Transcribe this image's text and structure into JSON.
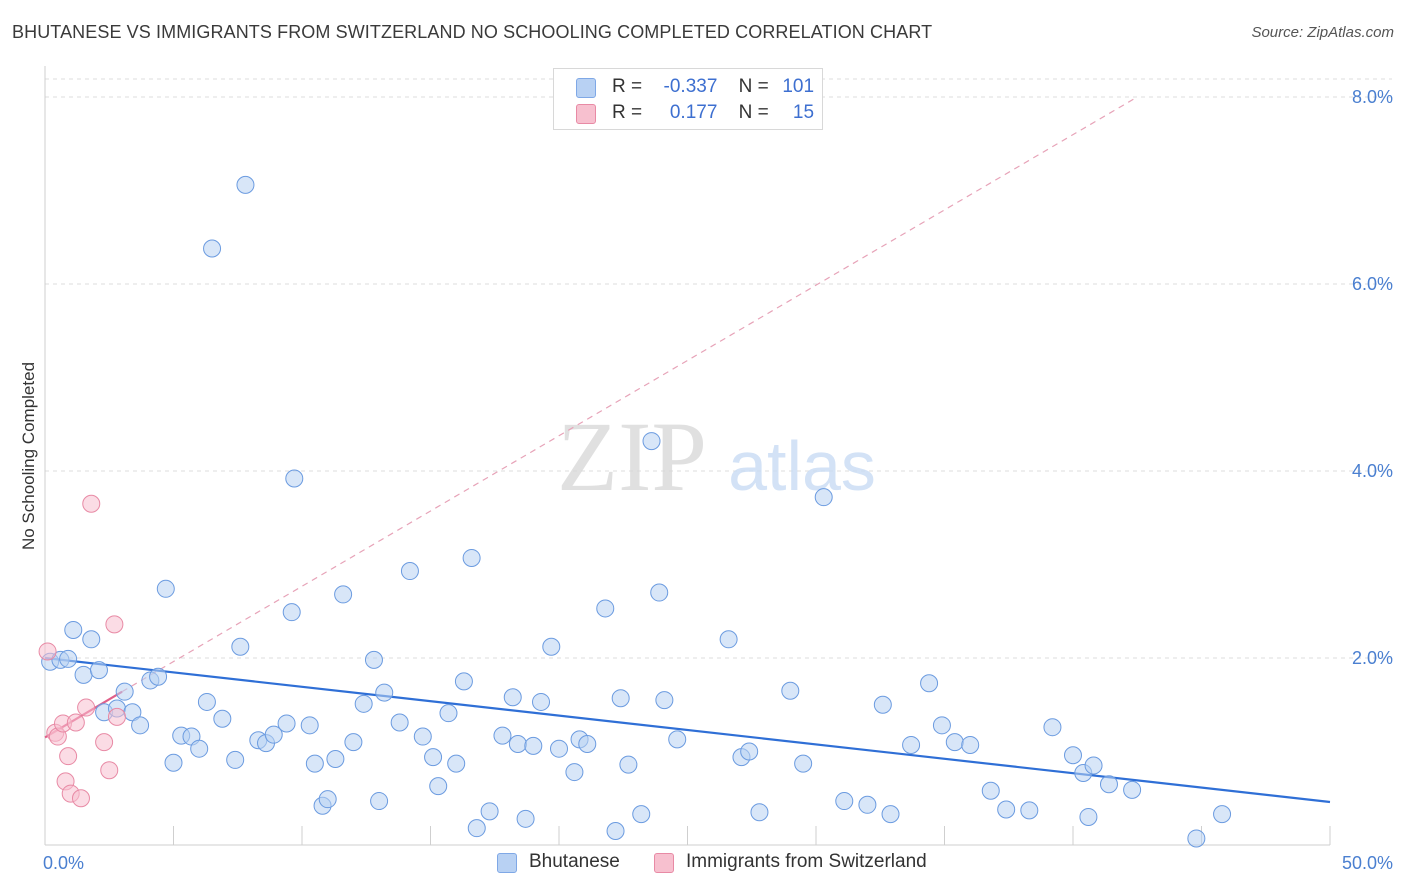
{
  "header": {
    "title": "BHUTANESE VS IMMIGRANTS FROM SWITZERLAND NO SCHOOLING COMPLETED CORRELATION CHART",
    "source": "Source: ZipAtlas.com"
  },
  "watermark": {
    "zip": "ZIP",
    "atlas": "atlas"
  },
  "stats_legend": {
    "rows": [
      {
        "r_label": "R =",
        "r_value": "-0.337",
        "n_label": "N =",
        "n_value": "101",
        "color": "#b8d1f3"
      },
      {
        "r_label": "R =",
        "r_value": "0.177",
        "n_label": "N =",
        "n_value": "15",
        "color": "#f7c0cf"
      }
    ]
  },
  "series_legend": {
    "items": [
      {
        "label": "Bhutanese",
        "color": "#b8d1f3"
      },
      {
        "label": "Immigrants from Switzerland",
        "color": "#f7c0cf"
      }
    ]
  },
  "chart_data": {
    "type": "scatter",
    "title": "BHUTANESE VS IMMIGRANTS FROM SWITZERLAND NO SCHOOLING COMPLETED CORRELATION CHART",
    "xlabel": "",
    "ylabel": "No Schooling Completed",
    "xlim": [
      0,
      50
    ],
    "ylim": [
      0,
      8.2
    ],
    "x_tick_labels": [
      "0.0%",
      "50.0%"
    ],
    "y_ticks": [
      2,
      4,
      6,
      8
    ],
    "y_tick_labels": [
      "2.0%",
      "4.0%",
      "6.0%",
      "8.0%"
    ],
    "grid": true,
    "legend_position": "bottom",
    "colors": {
      "blue_fill": "#b8d1f3",
      "blue_stroke": "#6b9be0",
      "blue_line": "#2f6fd6",
      "pink_fill": "#f7c0cf",
      "pink_stroke": "#e88aa5",
      "pink_line": "#e0608a"
    },
    "series": [
      {
        "name": "Bhutanese",
        "trend": {
          "x": [
            0,
            50
          ],
          "y": [
            2.0,
            0.46
          ]
        },
        "points": [
          [
            0.2,
            1.96
          ],
          [
            0.6,
            1.98
          ],
          [
            0.9,
            1.99
          ],
          [
            1.1,
            2.3
          ],
          [
            1.5,
            1.82
          ],
          [
            1.8,
            2.2
          ],
          [
            2.1,
            1.87
          ],
          [
            2.3,
            1.42
          ],
          [
            2.8,
            1.46
          ],
          [
            3.1,
            1.64
          ],
          [
            3.4,
            1.42
          ],
          [
            3.7,
            1.28
          ],
          [
            4.1,
            1.76
          ],
          [
            4.4,
            1.8
          ],
          [
            4.7,
            2.74
          ],
          [
            5.0,
            0.88
          ],
          [
            5.3,
            1.17
          ],
          [
            5.7,
            1.16
          ],
          [
            6.0,
            1.03
          ],
          [
            6.3,
            1.53
          ],
          [
            6.5,
            6.38
          ],
          [
            6.9,
            1.35
          ],
          [
            7.4,
            0.91
          ],
          [
            7.6,
            2.12
          ],
          [
            7.8,
            7.06
          ],
          [
            8.3,
            1.12
          ],
          [
            8.6,
            1.09
          ],
          [
            8.9,
            1.18
          ],
          [
            9.4,
            1.3
          ],
          [
            9.6,
            2.49
          ],
          [
            9.7,
            3.92
          ],
          [
            10.3,
            1.28
          ],
          [
            10.5,
            0.87
          ],
          [
            10.8,
            0.42
          ],
          [
            11.0,
            0.49
          ],
          [
            11.3,
            0.92
          ],
          [
            11.6,
            2.68
          ],
          [
            12.0,
            1.1
          ],
          [
            12.4,
            1.51
          ],
          [
            12.8,
            1.98
          ],
          [
            13.0,
            0.47
          ],
          [
            13.2,
            1.63
          ],
          [
            13.8,
            1.31
          ],
          [
            14.2,
            2.93
          ],
          [
            14.7,
            1.16
          ],
          [
            15.1,
            0.94
          ],
          [
            15.3,
            0.63
          ],
          [
            15.7,
            1.41
          ],
          [
            16.0,
            0.87
          ],
          [
            16.3,
            1.75
          ],
          [
            16.6,
            3.07
          ],
          [
            16.8,
            0.18
          ],
          [
            17.3,
            0.36
          ],
          [
            17.8,
            1.17
          ],
          [
            18.2,
            1.58
          ],
          [
            18.4,
            1.08
          ],
          [
            18.7,
            0.28
          ],
          [
            19.0,
            1.06
          ],
          [
            19.3,
            1.53
          ],
          [
            19.7,
            2.12
          ],
          [
            20.0,
            1.03
          ],
          [
            20.6,
            0.78
          ],
          [
            20.8,
            1.13
          ],
          [
            21.1,
            1.08
          ],
          [
            21.8,
            2.53
          ],
          [
            22.2,
            0.15
          ],
          [
            22.4,
            1.57
          ],
          [
            22.7,
            0.86
          ],
          [
            23.2,
            0.33
          ],
          [
            23.6,
            4.32
          ],
          [
            23.9,
            2.7
          ],
          [
            24.1,
            1.55
          ],
          [
            24.6,
            1.13
          ],
          [
            26.6,
            2.2
          ],
          [
            27.1,
            0.94
          ],
          [
            27.4,
            1.0
          ],
          [
            27.8,
            0.35
          ],
          [
            29.0,
            1.65
          ],
          [
            29.5,
            0.87
          ],
          [
            30.3,
            3.72
          ],
          [
            31.1,
            0.47
          ],
          [
            32.0,
            0.43
          ],
          [
            32.6,
            1.5
          ],
          [
            32.9,
            0.33
          ],
          [
            33.7,
            1.07
          ],
          [
            34.4,
            1.73
          ],
          [
            34.9,
            1.28
          ],
          [
            35.4,
            1.1
          ],
          [
            36.0,
            1.07
          ],
          [
            36.8,
            0.58
          ],
          [
            37.4,
            0.38
          ],
          [
            38.3,
            0.37
          ],
          [
            39.2,
            1.26
          ],
          [
            40.0,
            0.96
          ],
          [
            40.4,
            0.77
          ],
          [
            40.6,
            0.3
          ],
          [
            40.8,
            0.85
          ],
          [
            41.4,
            0.65
          ],
          [
            42.3,
            0.59
          ],
          [
            44.8,
            0.07
          ],
          [
            45.8,
            0.33
          ]
        ]
      },
      {
        "name": "Immigrants from Switzerland",
        "trend": {
          "x": [
            0,
            3
          ],
          "y": [
            1.15,
            1.64
          ]
        },
        "dashed_trend": {
          "x": [
            3,
            42.5
          ],
          "y": [
            1.64,
            8.0
          ]
        },
        "points": [
          [
            0.1,
            2.07
          ],
          [
            0.4,
            1.2
          ],
          [
            0.5,
            1.16
          ],
          [
            0.7,
            1.3
          ],
          [
            0.8,
            0.68
          ],
          [
            0.9,
            0.95
          ],
          [
            1.0,
            0.55
          ],
          [
            1.2,
            1.31
          ],
          [
            1.4,
            0.5
          ],
          [
            1.6,
            1.47
          ],
          [
            1.8,
            3.65
          ],
          [
            2.3,
            1.1
          ],
          [
            2.5,
            0.8
          ],
          [
            2.7,
            2.36
          ],
          [
            2.8,
            1.37
          ]
        ]
      }
    ]
  }
}
